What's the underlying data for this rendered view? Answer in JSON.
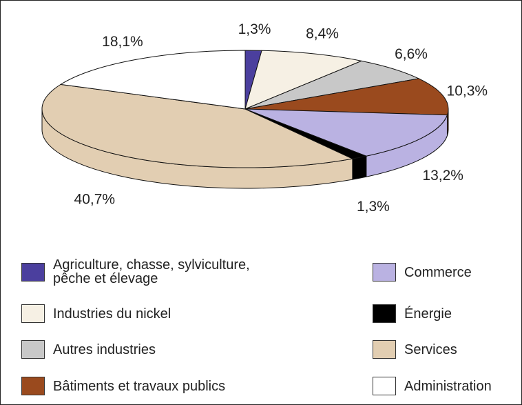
{
  "chart_data": {
    "type": "pie",
    "categories": [
      "Agriculture, chasse, sylviculture, pêche et élevage",
      "Industries du nickel",
      "Autres industries",
      "Bâtiments et travaux publics",
      "Commerce",
      "Énergie",
      "Services",
      "Administration"
    ],
    "values": [
      1.3,
      8.4,
      6.6,
      10.3,
      13.2,
      1.3,
      40.7,
      18.1
    ],
    "value_labels": [
      "1,3%",
      "8,4%",
      "6,6%",
      "10,3%",
      "13,2%",
      "1,3%",
      "40,7%",
      "18,1%"
    ],
    "colors": [
      "#4b3f9e",
      "#f6f0e4",
      "#c8c8c8",
      "#9a4a1e",
      "#bab2e2",
      "#000000",
      "#e2ceb2",
      "#ffffff"
    ]
  }
}
